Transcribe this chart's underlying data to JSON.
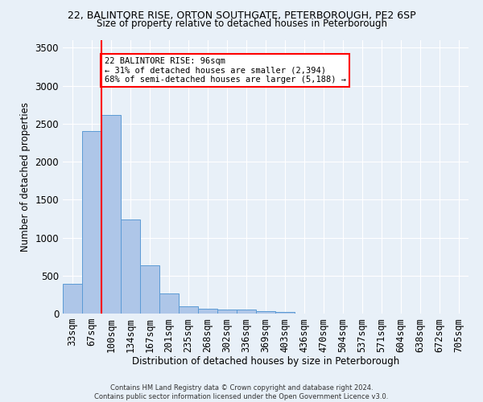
{
  "title1": "22, BALINTORE RISE, ORTON SOUTHGATE, PETERBOROUGH, PE2 6SP",
  "title2": "Size of property relative to detached houses in Peterborough",
  "xlabel": "Distribution of detached houses by size in Peterborough",
  "ylabel": "Number of detached properties",
  "footer1": "Contains HM Land Registry data © Crown copyright and database right 2024.",
  "footer2": "Contains public sector information licensed under the Open Government Licence v3.0.",
  "categories": [
    "33sqm",
    "67sqm",
    "100sqm",
    "134sqm",
    "167sqm",
    "201sqm",
    "235sqm",
    "268sqm",
    "302sqm",
    "336sqm",
    "369sqm",
    "403sqm",
    "436sqm",
    "470sqm",
    "504sqm",
    "537sqm",
    "571sqm",
    "604sqm",
    "638sqm",
    "672sqm",
    "705sqm"
  ],
  "values": [
    390,
    2400,
    2620,
    1240,
    640,
    260,
    100,
    60,
    55,
    50,
    30,
    25,
    0,
    0,
    0,
    0,
    0,
    0,
    0,
    0,
    0
  ],
  "bar_color": "#aec6e8",
  "bar_edge_color": "#5b9bd5",
  "vline_color": "red",
  "annotation_text": "22 BALINTORE RISE: 96sqm\n← 31% of detached houses are smaller (2,394)\n68% of semi-detached houses are larger (5,188) →",
  "annotation_box_color": "white",
  "annotation_box_edge_color": "red",
  "ylim": [
    0,
    3600
  ],
  "yticks": [
    0,
    500,
    1000,
    1500,
    2000,
    2500,
    3000,
    3500
  ],
  "bg_color": "#e8f0f8",
  "grid_color": "white",
  "title1_fontsize": 9,
  "title2_fontsize": 8.5,
  "xlabel_fontsize": 8.5,
  "ylabel_fontsize": 8.5,
  "tick_fontsize": 8.5,
  "footer_fontsize": 6,
  "annot_fontsize": 7.5
}
